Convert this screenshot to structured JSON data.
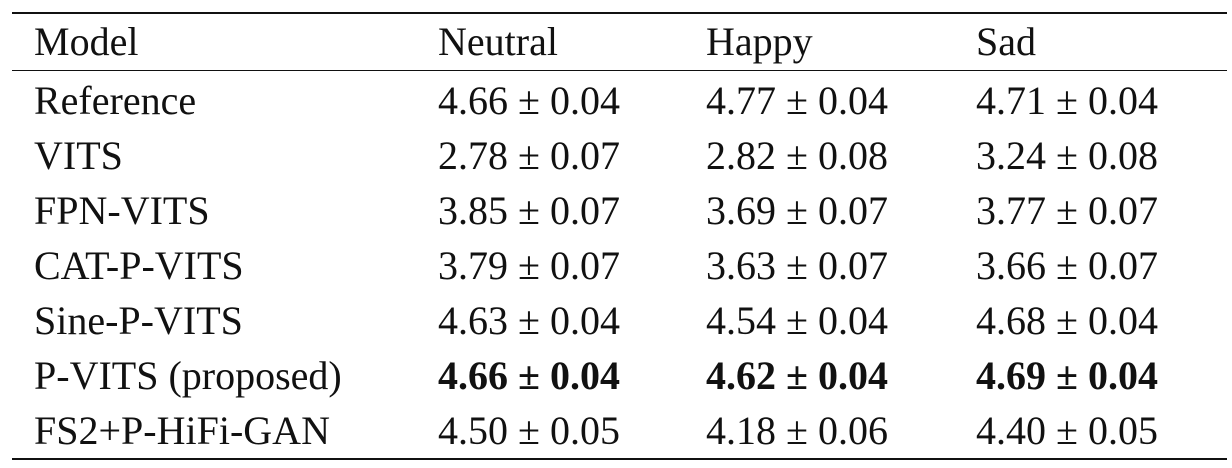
{
  "table": {
    "headers": [
      "Model",
      "Neutral",
      "Happy",
      "Sad"
    ],
    "rows": [
      {
        "model": "Reference",
        "neutral": "4.66 ± 0.04",
        "happy": "4.77 ± 0.04",
        "sad": "4.71 ± 0.04",
        "bold": false
      },
      {
        "model": "VITS",
        "neutral": "2.78 ± 0.07",
        "happy": "2.82 ± 0.08",
        "sad": "3.24 ± 0.08",
        "bold": false
      },
      {
        "model": "FPN-VITS",
        "neutral": "3.85 ± 0.07",
        "happy": "3.69 ± 0.07",
        "sad": "3.77 ± 0.07",
        "bold": false
      },
      {
        "model": "CAT-P-VITS",
        "neutral": "3.79 ± 0.07",
        "happy": "3.63 ± 0.07",
        "sad": "3.66 ± 0.07",
        "bold": false
      },
      {
        "model": "Sine-P-VITS",
        "neutral": "4.63 ± 0.04",
        "happy": "4.54 ± 0.04",
        "sad": "4.68 ± 0.04",
        "bold": false
      },
      {
        "model": "P-VITS (proposed)",
        "neutral": "4.66 ± 0.04",
        "happy": "4.62 ± 0.04",
        "sad": "4.69 ± 0.04",
        "bold": true
      },
      {
        "model": "FS2+P-HiFi-GAN",
        "neutral": "4.50 ± 0.05",
        "happy": "4.18 ± 0.06",
        "sad": "4.40 ± 0.05",
        "bold": false
      }
    ]
  }
}
